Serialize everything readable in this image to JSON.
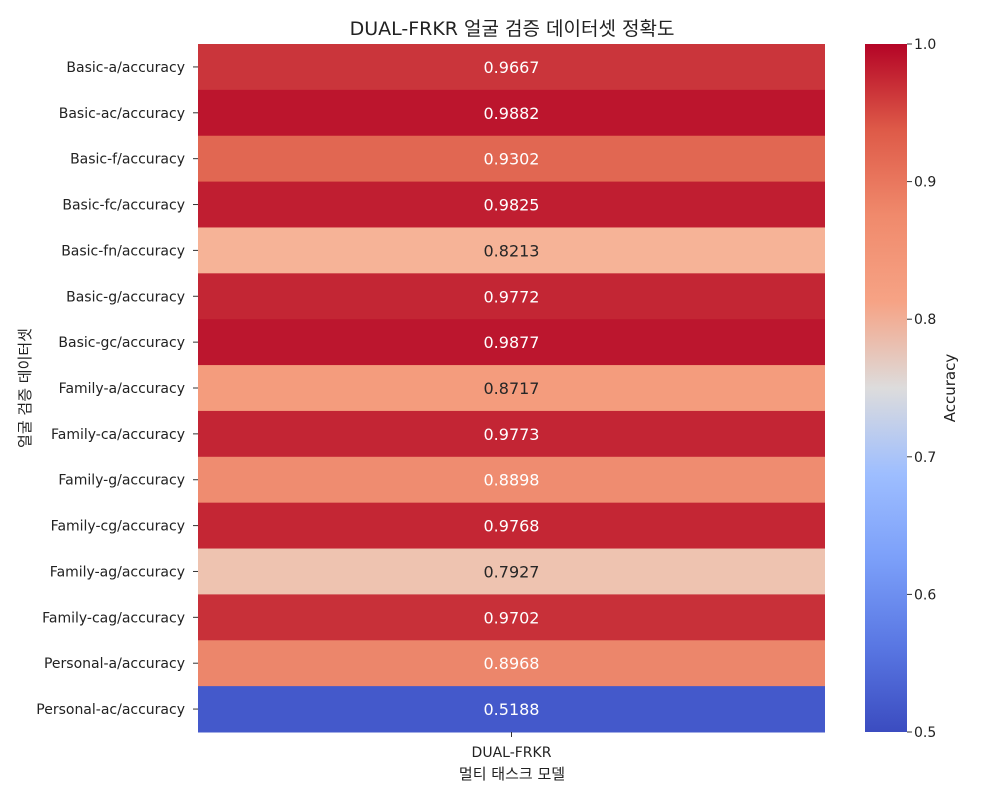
{
  "chart_data": {
    "type": "heatmap",
    "title": "DUAL-FRKR 얼굴 검증 데이터셋 정확도",
    "xlabel": "멀티 태스크 모델",
    "ylabel": "얼굴 검증 데이터셋",
    "colorbar_label": "Accuracy",
    "colormap": "coolwarm",
    "vmin": 0.5,
    "vmax": 1.0,
    "colorbar_ticks": [
      "0.5",
      "0.6",
      "0.7",
      "0.8",
      "0.9",
      "1.0"
    ],
    "columns": [
      "DUAL-FRKR"
    ],
    "rows": [
      "Basic-a/accuracy",
      "Basic-ac/accuracy",
      "Basic-f/accuracy",
      "Basic-fc/accuracy",
      "Basic-fn/accuracy",
      "Basic-g/accuracy",
      "Basic-gc/accuracy",
      "Family-a/accuracy",
      "Family-ca/accuracy",
      "Family-g/accuracy",
      "Family-cg/accuracy",
      "Family-ag/accuracy",
      "Family-cag/accuracy",
      "Personal-a/accuracy",
      "Personal-ac/accuracy"
    ],
    "values": [
      0.9667,
      0.9882,
      0.9302,
      0.9825,
      0.8213,
      0.9772,
      0.9877,
      0.8717,
      0.9773,
      0.8898,
      0.9768,
      0.7927,
      0.9702,
      0.8968,
      0.5188
    ],
    "value_labels": [
      "0.9667",
      "0.9882",
      "0.9302",
      "0.9825",
      "0.8213",
      "0.9772",
      "0.9877",
      "0.8717",
      "0.9773",
      "0.8898",
      "0.9768",
      "0.7927",
      "0.9702",
      "0.8968",
      "0.5188"
    ]
  }
}
